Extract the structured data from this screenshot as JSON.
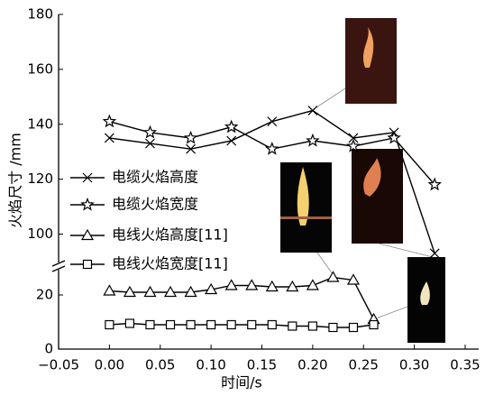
{
  "chart_data": {
    "type": "line",
    "x_label": "时间/s",
    "y_label": "火焰尺寸 /mm",
    "xlim": [
      -0.05,
      0.35
    ],
    "xticks": [
      {
        "value": -0.05,
        "label": "−0.05"
      },
      {
        "value": 0,
        "label": "0.00"
      },
      0.05,
      {
        "value": 0.1,
        "label": "0.10"
      },
      0.15,
      {
        "value": 0.2,
        "label": "0.20"
      },
      0.25,
      {
        "value": 0.3,
        "label": "0.30"
      },
      0.35
    ],
    "ylim": [
      0,
      180
    ],
    "ybreak": [
      30,
      89
    ],
    "yticks": [
      0,
      20,
      100,
      120,
      140,
      160,
      180
    ],
    "series": [
      {
        "name": "电缆火焰高度",
        "color": "#000000",
        "marker": "x",
        "x": [
          0,
          0.04,
          0.08,
          0.12,
          0.16,
          0.2,
          0.24,
          0.28,
          0.32
        ],
        "values": [
          135,
          133,
          131,
          134,
          141,
          145,
          135,
          137,
          93
        ]
      },
      {
        "name": "电缆火焰宽度",
        "color": "#000000",
        "marker": "star",
        "x": [
          0,
          0.04,
          0.08,
          0.12,
          0.16,
          0.2,
          0.24,
          0.28,
          0.32
        ],
        "values": [
          141,
          137,
          135,
          139,
          131,
          134,
          132,
          135,
          118
        ]
      },
      {
        "name": "电线火焰高度[11]",
        "color": "#000000",
        "marker": "triangle",
        "x": [
          0,
          0.02,
          0.04,
          0.06,
          0.08,
          0.1,
          0.12,
          0.14,
          0.16,
          0.18,
          0.2,
          0.22,
          0.24,
          0.26
        ],
        "values": [
          21.5,
          21,
          21,
          21,
          21,
          22,
          23.5,
          23.5,
          23,
          23,
          23.5,
          26.5,
          25.5,
          11
        ]
      },
      {
        "name": "电线火焰宽度[11]",
        "color": "#000000",
        "marker": "square",
        "x": [
          0,
          0.02,
          0.04,
          0.06,
          0.08,
          0.1,
          0.12,
          0.14,
          0.16,
          0.18,
          0.2,
          0.22,
          0.24,
          0.26
        ],
        "values": [
          9,
          9.5,
          9,
          9,
          9,
          9,
          9,
          9,
          9,
          8.5,
          8.5,
          8,
          8,
          9
        ]
      }
    ]
  }
}
